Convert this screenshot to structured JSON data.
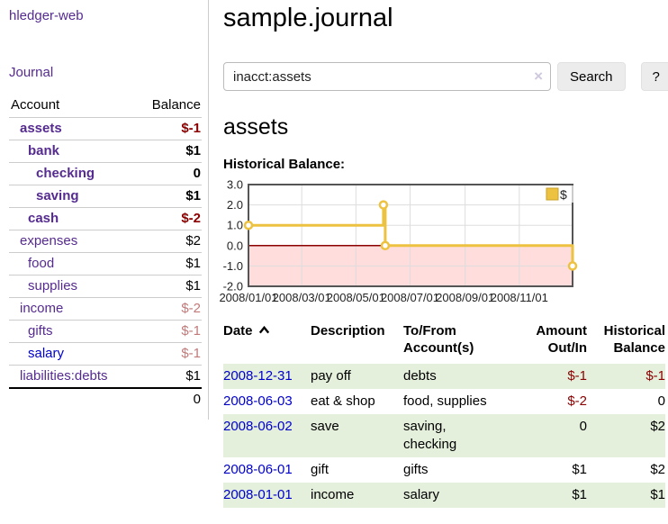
{
  "colors": {
    "accent-purple": "#552b90",
    "link-blue": "#0000cc",
    "neg-strong": "#8b0000",
    "neg-soft": "#c07a7a",
    "row-green": "#e4efdc",
    "chart-gold": "#edc240",
    "chart-gold-border": "#c9a227",
    "chart-pink": "#ffdddd",
    "zero-line": "#8b0000",
    "chart-grid": "#dddddd",
    "chart-border": "#555555"
  },
  "sidebar": {
    "brand": "hledger-web",
    "nav": {
      "journal": "Journal"
    },
    "table": {
      "headers": {
        "account": "Account",
        "balance": "Balance"
      },
      "accounts": [
        {
          "name": "assets",
          "balance": "$-1",
          "level": 1,
          "bold": true,
          "name_color": "purple",
          "balance_color": "neg-strong"
        },
        {
          "name": "bank",
          "balance": "$1",
          "level": 2,
          "bold": true,
          "name_color": "purple",
          "balance_color": "black"
        },
        {
          "name": "checking",
          "balance": "0",
          "level": 3,
          "bold": true,
          "name_color": "purple",
          "balance_color": "black"
        },
        {
          "name": "saving",
          "balance": "$1",
          "level": 3,
          "bold": true,
          "name_color": "purple",
          "balance_color": "black"
        },
        {
          "name": "cash",
          "balance": "$-2",
          "level": 2,
          "bold": true,
          "name_color": "purple",
          "balance_color": "neg-strong"
        },
        {
          "name": "expenses",
          "balance": "$2",
          "level": 1,
          "bold": false,
          "name_color": "purple",
          "balance_color": "black"
        },
        {
          "name": "food",
          "balance": "$1",
          "level": 2,
          "bold": false,
          "name_color": "purple",
          "balance_color": "black"
        },
        {
          "name": "supplies",
          "balance": "$1",
          "level": 2,
          "bold": false,
          "name_color": "purple",
          "balance_color": "black"
        },
        {
          "name": "income",
          "balance": "$-2",
          "level": 1,
          "bold": false,
          "name_color": "purple",
          "balance_color": "neg-soft"
        },
        {
          "name": "gifts",
          "balance": "$-1",
          "level": 2,
          "bold": false,
          "name_color": "purple",
          "balance_color": "neg-soft"
        },
        {
          "name": "salary",
          "balance": "$-1",
          "level": 2,
          "bold": false,
          "name_color": "blue",
          "balance_color": "neg-soft"
        },
        {
          "name": "liabilities:debts",
          "balance": "$1",
          "level": 1,
          "bold": false,
          "name_color": "purple",
          "balance_color": "black"
        }
      ],
      "total": "0"
    }
  },
  "header": {
    "title": "sample.journal"
  },
  "search": {
    "query": "inacct:assets",
    "clear_icon": "×",
    "search_button": "Search",
    "help_button": "?"
  },
  "account_page": {
    "heading": "assets",
    "chart_label": "Historical Balance:"
  },
  "chart_data": {
    "type": "line",
    "step": true,
    "title": "Historical Balance",
    "series": [
      {
        "name": "$",
        "points": [
          [
            "2008-01-01",
            1
          ],
          [
            "2008-06-01",
            2
          ],
          [
            "2008-06-03",
            0
          ],
          [
            "2008-12-31",
            -1
          ]
        ]
      }
    ],
    "x_range": [
      "2008-01-01",
      "2008-12-31"
    ],
    "x_tick_dates": [
      "2008-01-01",
      "2008-03-01",
      "2008-05-01",
      "2008-07-01",
      "2008-09-01",
      "2008-11-01"
    ],
    "x_tick_labels": [
      "2008/01/01",
      "2008/03/01",
      "2008/05/01",
      "2008/07/01",
      "2008/09/01",
      "2008/11/01"
    ],
    "y_ticks": [
      3.0,
      2.0,
      1.0,
      0.0,
      -1.0,
      -2.0
    ],
    "ylim": [
      -2,
      3
    ],
    "grid": true,
    "legend": {
      "label": "$",
      "position": "top-right"
    },
    "negative_region": true
  },
  "register": {
    "headers": {
      "date": "Date",
      "description": "Description",
      "accounts": "To/From Account(s)",
      "amount": "Amount Out/In",
      "balance": "Historical Balance"
    },
    "sort_icon": "chevron-up",
    "rows": [
      {
        "date": "2008-12-31",
        "description": "pay off",
        "accounts": "debts",
        "amount": "$-1",
        "amount_neg": true,
        "balance": "$-1",
        "balance_neg": true,
        "shaded": true,
        "accounts_wrap": false
      },
      {
        "date": "2008-06-03",
        "description": "eat & shop",
        "accounts": "food, supplies",
        "amount": "$-2",
        "amount_neg": true,
        "balance": "0",
        "balance_neg": false,
        "shaded": false,
        "accounts_wrap": false
      },
      {
        "date": "2008-06-02",
        "description": "save",
        "accounts": "saving, checking",
        "amount": "0",
        "amount_neg": false,
        "balance": "$2",
        "balance_neg": false,
        "shaded": true,
        "accounts_wrap": true
      },
      {
        "date": "2008-06-01",
        "description": "gift",
        "accounts": "gifts",
        "amount": "$1",
        "amount_neg": false,
        "balance": "$2",
        "balance_neg": false,
        "shaded": false,
        "accounts_wrap": false
      },
      {
        "date": "2008-01-01",
        "description": "income",
        "accounts": "salary",
        "amount": "$1",
        "amount_neg": false,
        "balance": "$1",
        "balance_neg": false,
        "shaded": true,
        "accounts_wrap": false
      }
    ]
  }
}
